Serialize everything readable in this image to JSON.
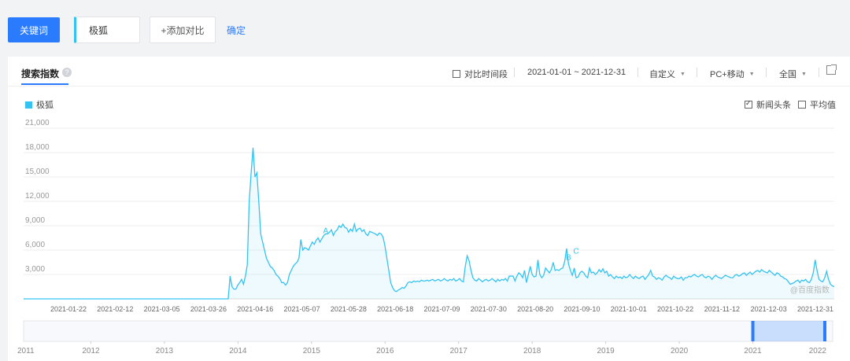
{
  "toolbar": {
    "keyword_button": "关键词",
    "keyword_value": "极狐",
    "add_compare": "+添加对比",
    "confirm": "确定"
  },
  "panel": {
    "tab_title": "搜索指数",
    "help_icon": "?",
    "compare_period": "对比时间段",
    "date_range": "2021-01-01 ~ 2021-12-31",
    "custom": "自定义",
    "device": "PC+移动",
    "region": "全国",
    "news_headline": "新闻头条",
    "average": "平均值",
    "watermark": "@百度指数"
  },
  "colors": {
    "accent": "#2b7bff",
    "series": "#34c3f1"
  },
  "icons": [
    "question-icon",
    "checkbox-icon",
    "caret-down-icon",
    "external-link-icon"
  ],
  "chart_data": {
    "type": "area",
    "series": [
      {
        "name": "极狐",
        "color": "#34c3f1",
        "values": [
          0,
          0,
          0,
          0,
          0,
          0,
          0,
          0,
          0,
          0,
          0,
          0,
          0,
          0,
          0,
          0,
          0,
          0,
          0,
          0,
          0,
          0,
          0,
          0,
          0,
          0,
          0,
          0,
          0,
          0,
          0,
          0,
          0,
          0,
          0,
          0,
          0,
          0,
          0,
          0,
          0,
          0,
          0,
          0,
          0,
          0,
          0,
          0,
          0,
          0,
          0,
          0,
          0,
          0,
          0,
          0,
          0,
          0,
          0,
          0,
          0,
          0,
          0,
          0,
          0,
          0,
          0,
          0,
          0,
          0,
          0,
          0,
          0,
          0,
          0,
          0,
          0,
          0,
          0,
          0,
          0,
          0,
          0,
          0,
          0,
          0,
          0,
          0,
          0,
          0,
          0,
          0,
          0,
          0,
          0,
          0,
          0,
          0,
          0,
          0,
          0,
          0,
          0,
          0,
          0,
          0,
          0,
          0,
          2800,
          1500,
          1200,
          1200,
          1700,
          2000,
          2400,
          1800,
          2800,
          4200,
          12000,
          15500,
          18600,
          15000,
          15500,
          12000,
          8000,
          7000,
          6000,
          5000,
          4500,
          4000,
          3800,
          3500,
          3000,
          2800,
          2500,
          2000,
          2000,
          1700,
          2000,
          3000,
          3500,
          4000,
          4300,
          4500,
          5000,
          7300,
          6000,
          6300,
          6200,
          6000,
          6500,
          7000,
          6700,
          7200,
          7500,
          7000,
          7400,
          7800,
          8000,
          8000,
          8200,
          8500,
          7800,
          8300,
          8500,
          9000,
          8800,
          9200,
          8800,
          8700,
          8200,
          8600,
          8300,
          9200,
          8300,
          8600,
          8700,
          8300,
          8500,
          8000,
          7800,
          8300,
          8200,
          8100,
          8000,
          7800,
          8100,
          8000,
          7600,
          6500,
          5000,
          3500,
          2000,
          1400,
          1000,
          900,
          1100,
          1200,
          1400,
          1300,
          1600,
          2000,
          2100,
          2000,
          2200,
          2100,
          2200,
          2100,
          2300,
          2200,
          2200,
          2300,
          2200,
          2300,
          2400,
          2200,
          2300,
          2400,
          2200,
          2300,
          2500,
          2300,
          2200,
          2400,
          2300,
          2500,
          2200,
          2300,
          2500,
          2200,
          2100,
          4000,
          5300,
          4700,
          3500,
          2600,
          2300,
          2200,
          2500,
          2300,
          2100,
          2300,
          2400,
          2200,
          2300,
          2500,
          2300,
          2100,
          2400,
          2200,
          2400,
          2300,
          2500,
          2200,
          2800,
          2800,
          2800,
          2200,
          2800,
          3200,
          3000,
          2600,
          3500,
          2000,
          3000,
          4000,
          3000,
          2700,
          2800,
          4800,
          3000,
          2600,
          2900,
          3800,
          3500,
          3200,
          3600,
          4500,
          3500,
          3600,
          3500,
          3700,
          3800,
          4600,
          6200,
          4300,
          3500,
          2900,
          3800,
          2600,
          2700,
          3200,
          3400,
          3200,
          2800,
          2600,
          3800,
          3200,
          3300,
          3000,
          3200,
          3600,
          3300,
          3700,
          3200,
          3400,
          2800,
          3000,
          2700,
          2500,
          2800,
          2600,
          2700,
          2500,
          2800,
          2600,
          2700,
          3000,
          2700,
          2500,
          2800,
          2600,
          2500,
          2700,
          2800,
          2400,
          2700,
          3000,
          3500,
          2800,
          2700,
          2400,
          2600,
          2500,
          2300,
          2700,
          2900,
          2700,
          2600,
          2400,
          2800,
          2600,
          2500,
          2500,
          2700,
          2300,
          2600,
          2600,
          2800,
          2700,
          2900,
          3000,
          2800,
          2700,
          2900,
          3000,
          2700,
          2600,
          2800,
          2700,
          2400,
          2700,
          2900,
          2700,
          2600,
          2500,
          2700,
          2900,
          2800,
          2700,
          2600,
          2600,
          2900,
          3000,
          2800,
          2900,
          3100,
          3200,
          2900,
          3100,
          3300,
          3000,
          3200,
          3400,
          3500,
          3300,
          3600,
          3400,
          3300,
          3200,
          3500,
          3300,
          3100,
          2900,
          3200,
          3100,
          2800,
          2700,
          2500,
          2400,
          2100,
          1800,
          1900,
          2000,
          2200,
          2300,
          2000,
          2300,
          2200,
          2400,
          2100,
          2000,
          2400,
          3200,
          4800,
          3500,
          2400,
          2200,
          2100,
          2600,
          3400,
          2400,
          1800,
          1600,
          1500
        ]
      }
    ],
    "x_ticks": [
      "2021-01-22",
      "2021-02-12",
      "2021-03-05",
      "2021-03-26",
      "2021-04-16",
      "2021-05-07",
      "2021-05-28",
      "2021-06-18",
      "2021-07-09",
      "2021-07-30",
      "2021-08-20",
      "2021-09-10",
      "2021-10-01",
      "2021-10-22",
      "2021-11-12",
      "2021-12-03",
      "2021-12-31"
    ],
    "y_ticks": [
      "21,000",
      "18,000",
      "15,000",
      "12,000",
      "9,000",
      "6,000",
      "3,000"
    ],
    "ylim": [
      0,
      21000
    ],
    "annotations": [
      {
        "label": "A",
        "index": 158,
        "value": 7300
      },
      {
        "label": "B",
        "index": 285,
        "value": 4000
      },
      {
        "label": "C",
        "index": 289,
        "value": 4800
      }
    ],
    "legend": "top-left",
    "grid": true,
    "range_selector": {
      "years": [
        "2011",
        "2012",
        "2013",
        "2014",
        "2015",
        "2016",
        "2017",
        "2018",
        "2019",
        "2020",
        "2021",
        "2022"
      ],
      "selected": [
        "2021",
        "2022"
      ]
    }
  }
}
